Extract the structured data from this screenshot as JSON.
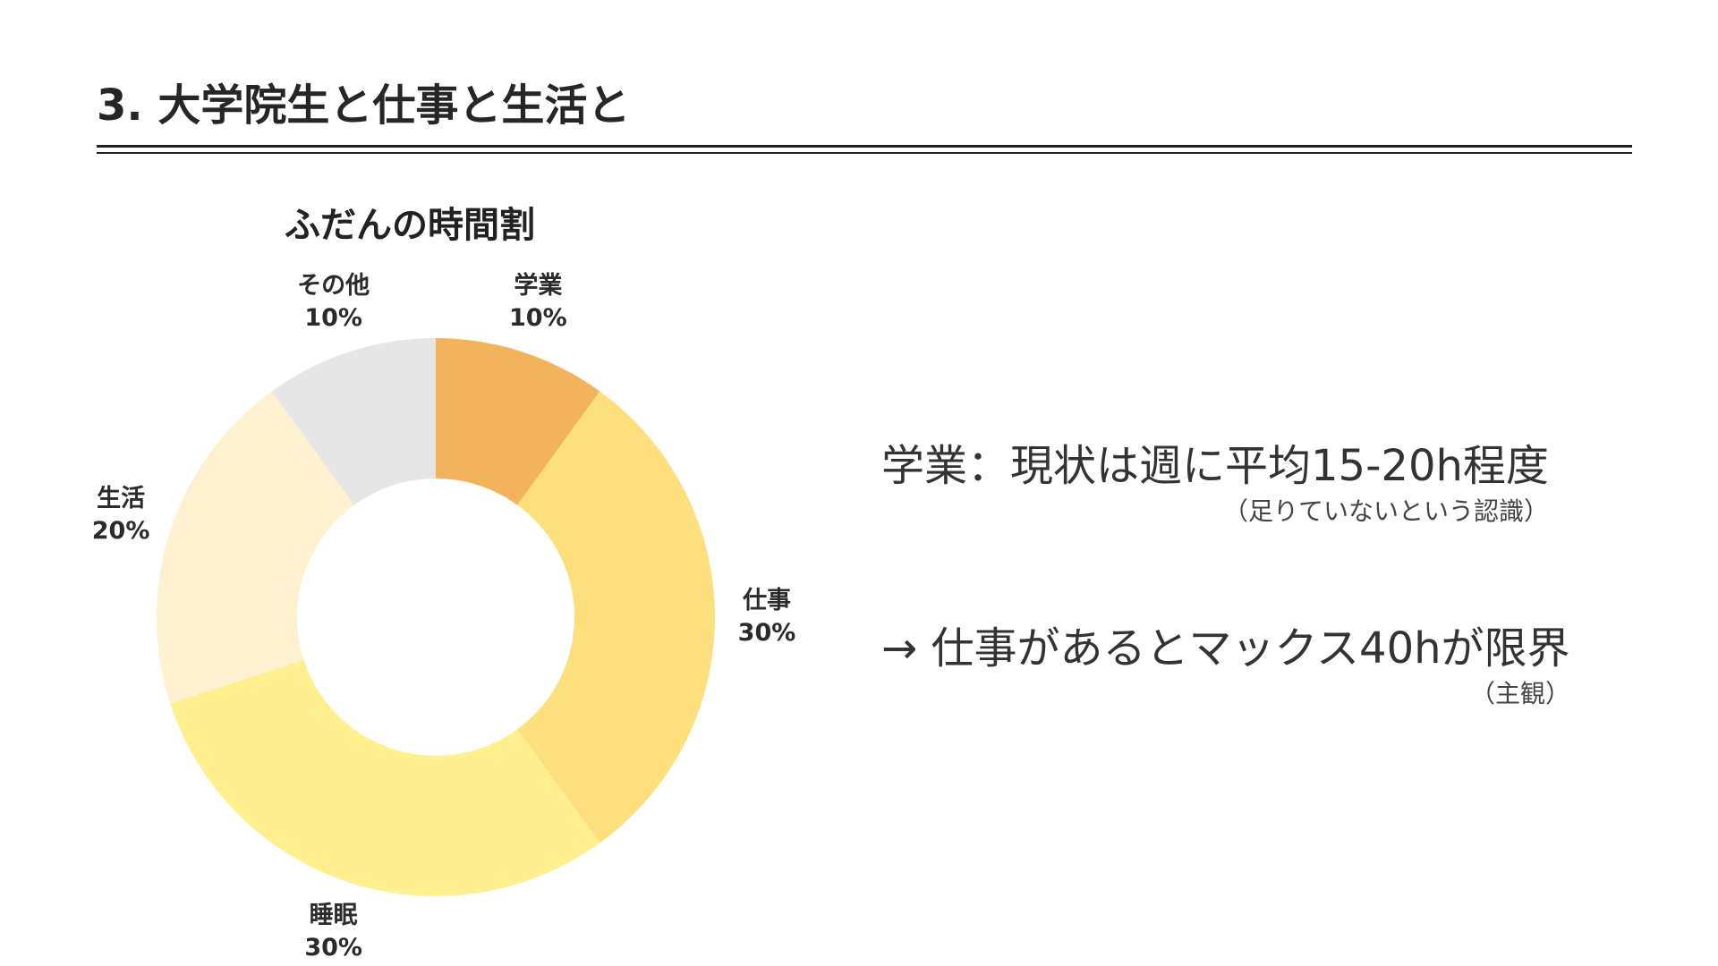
{
  "slide": {
    "title": "3. 大学院生と仕事と生活と"
  },
  "chart_data": {
    "type": "pie",
    "title": "ふだんの時間割",
    "donut": true,
    "categories": [
      "学業",
      "仕事",
      "睡眠",
      "生活",
      "その他"
    ],
    "values": [
      10,
      30,
      30,
      20,
      10
    ],
    "value_labels": [
      "10%",
      "30%",
      "30%",
      "20%",
      "10%"
    ],
    "colors": [
      "#F3B35C",
      "#FDDF7E",
      "#FFEF8E",
      "#FFF1CF",
      "#E6E6E6"
    ],
    "start_angle_deg": 0,
    "direction": "clockwise"
  },
  "notes": [
    {
      "main": "学業：現状は週に平均15-20h程度",
      "sub": "（足りていないという認識）"
    },
    {
      "main": "→ 仕事があるとマックス40hが限界",
      "sub": "（主観）"
    }
  ]
}
